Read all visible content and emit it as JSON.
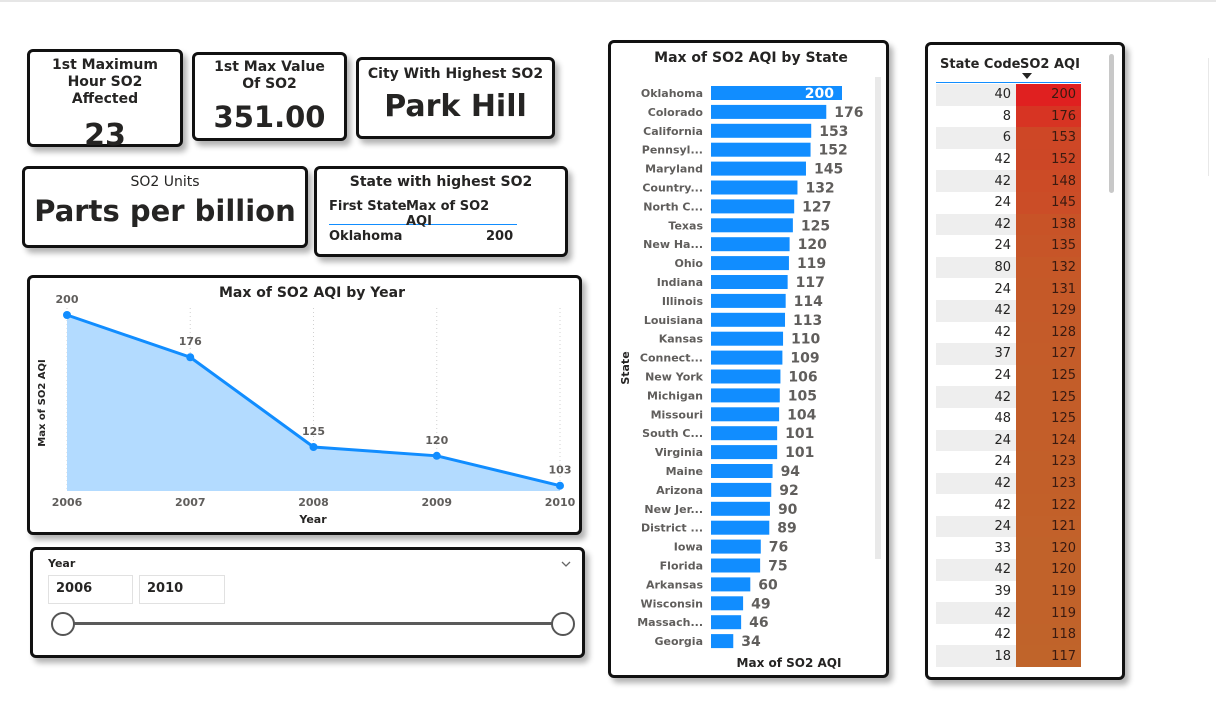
{
  "kpis": {
    "max_hour": {
      "title": "1st Maximum Hour SO2 Affected",
      "value": "23"
    },
    "max_value": {
      "title": "1st Max Value Of SO2",
      "value": "351.00"
    },
    "city": {
      "title": "City With Highest SO2",
      "value": "Park Hill"
    },
    "units": {
      "title": "SO2 Units",
      "value": "Parts per billion"
    }
  },
  "state_card": {
    "title": "State with highest SO2",
    "col1": "First State",
    "col2": "Max of SO2 AQI",
    "state": "Oklahoma",
    "value": "200"
  },
  "slicer": {
    "label": "Year",
    "from": "2006",
    "to": "2010",
    "chevron": "chevron-down-icon"
  },
  "state_table": {
    "headers": [
      "State Code",
      "SO2 AQI"
    ],
    "sort_icon": "sort-descending-icon",
    "rows": [
      [
        40,
        200
      ],
      [
        8,
        176
      ],
      [
        6,
        153
      ],
      [
        42,
        152
      ],
      [
        42,
        148
      ],
      [
        24,
        145
      ],
      [
        42,
        138
      ],
      [
        24,
        135
      ],
      [
        80,
        132
      ],
      [
        24,
        131
      ],
      [
        42,
        129
      ],
      [
        42,
        128
      ],
      [
        37,
        127
      ],
      [
        24,
        125
      ],
      [
        42,
        125
      ],
      [
        48,
        125
      ],
      [
        24,
        124
      ],
      [
        24,
        123
      ],
      [
        42,
        123
      ],
      [
        42,
        122
      ],
      [
        24,
        121
      ],
      [
        33,
        120
      ],
      [
        42,
        120
      ],
      [
        39,
        119
      ],
      [
        42,
        119
      ],
      [
        42,
        118
      ],
      [
        18,
        117
      ]
    ],
    "colors": {
      "high": "#e02020",
      "low": "#c0642a"
    }
  },
  "chart_data": [
    {
      "type": "area",
      "title": "Max of SO2 AQI by Year",
      "xlabel": "Year",
      "ylabel": "Max of SO2 AQI",
      "x": [
        "2006",
        "2007",
        "2008",
        "2009",
        "2010"
      ],
      "values": [
        200,
        176,
        125,
        120,
        103
      ],
      "ylim": [
        100,
        200
      ],
      "grid": "vertical dotted",
      "colors": {
        "line": "#118dff",
        "fill": "#b3dbff"
      }
    },
    {
      "type": "bar",
      "orientation": "horizontal",
      "title": "Max of SO2 AQI by State",
      "xlabel": "Max of SO2 AQI",
      "ylabel": "State",
      "categories": [
        "Oklahoma",
        "Colorado",
        "California",
        "Pennsyl...",
        "Maryland",
        "Country...",
        "North C...",
        "Texas",
        "New Ha...",
        "Ohio",
        "Indiana",
        "Illinois",
        "Louisiana",
        "Kansas",
        "Connect...",
        "New York",
        "Michigan",
        "Missouri",
        "South C...",
        "Virginia",
        "Maine",
        "Arizona",
        "New Jer...",
        "District ...",
        "Iowa",
        "Florida",
        "Arkansas",
        "Wisconsin",
        "Massach...",
        "Georgia"
      ],
      "values": [
        200,
        176,
        153,
        152,
        145,
        132,
        127,
        125,
        120,
        119,
        117,
        114,
        113,
        110,
        109,
        106,
        105,
        104,
        101,
        101,
        94,
        92,
        90,
        89,
        76,
        75,
        60,
        49,
        46,
        34
      ],
      "xlim": [
        0,
        200
      ],
      "colors": {
        "bar": "#118dff"
      }
    }
  ]
}
